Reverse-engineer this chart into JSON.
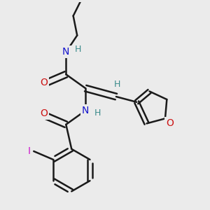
{
  "background_color": "#ebebeb",
  "bond_color": "#1a1a1a",
  "bond_width": 1.8,
  "N_color": "#1414cc",
  "O_color": "#cc1414",
  "I_color": "#cc14cc",
  "H_color": "#3a8a8a",
  "figsize": [
    3.0,
    3.0
  ],
  "dpi": 100,
  "xlim": [
    -0.3,
    2.8
  ],
  "ylim": [
    -1.5,
    2.2
  ]
}
